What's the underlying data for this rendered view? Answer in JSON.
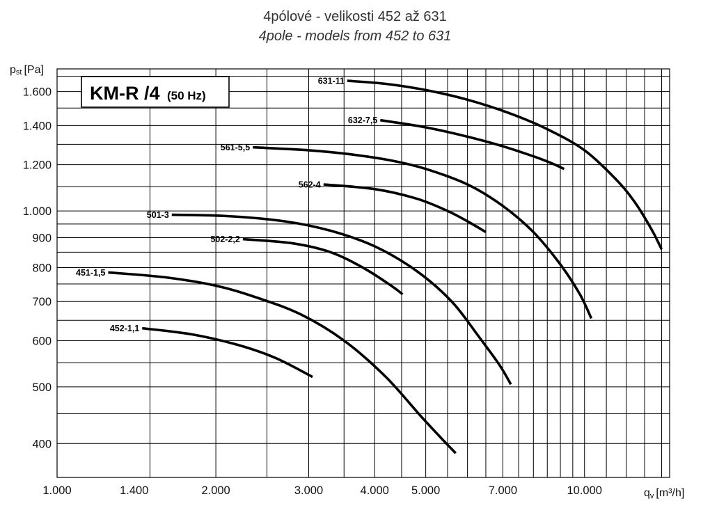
{
  "chart_data": {
    "type": "line",
    "title": "4pólové - velikosti 452 až 631",
    "subtitle": "4pole - models from 452 to 631",
    "legend": {
      "main": "KM-R /4",
      "sub": "(50 Hz)"
    },
    "x_scale": "log",
    "y_scale": "log",
    "xlim": [
      1000,
      14500
    ],
    "ylim": [
      350,
      1750
    ],
    "xlabel": {
      "main": "q",
      "sub": "v",
      "unit": "[m³/h]"
    },
    "ylabel": {
      "main": "p",
      "sub": "st",
      "unit": "[Pa]"
    },
    "x_ticks": [
      {
        "value": 1000,
        "label": "1.000"
      },
      {
        "value": 1400,
        "label": "1.400"
      },
      {
        "value": 2000,
        "label": "2.000"
      },
      {
        "value": 3000,
        "label": "3.000"
      },
      {
        "value": 4000,
        "label": "4.000"
      },
      {
        "value": 5000,
        "label": "5.000"
      },
      {
        "value": 7000,
        "label": "7.000"
      },
      {
        "value": 10000,
        "label": "10.000"
      }
    ],
    "y_ticks": [
      {
        "value": 400,
        "label": "400"
      },
      {
        "value": 500,
        "label": "500"
      },
      {
        "value": 600,
        "label": "600"
      },
      {
        "value": 700,
        "label": "700"
      },
      {
        "value": 800,
        "label": "800"
      },
      {
        "value": 900,
        "label": "900"
      },
      {
        "value": 1000,
        "label": "1.000"
      },
      {
        "value": 1200,
        "label": "1.200"
      },
      {
        "value": 1400,
        "label": "1.400"
      },
      {
        "value": 1600,
        "label": "1.600"
      }
    ],
    "grid": true,
    "series": [
      {
        "name": "631-11",
        "x": [
          3550,
          4200,
          5000,
          6000,
          7200,
          8500,
          10000,
          11500,
          12500,
          13400,
          14000
        ],
        "y": [
          1670,
          1650,
          1610,
          1550,
          1470,
          1380,
          1270,
          1130,
          1030,
          930,
          860
        ]
      },
      {
        "name": "632-7,5",
        "x": [
          4100,
          5000,
          6000,
          7000,
          8000,
          8600,
          9150
        ],
        "y": [
          1430,
          1390,
          1340,
          1290,
          1240,
          1210,
          1180
        ]
      },
      {
        "name": "561-5,5",
        "x": [
          2350,
          3000,
          3600,
          4300,
          5000,
          6000,
          7000,
          8000,
          9000,
          9800,
          10300
        ],
        "y": [
          1285,
          1270,
          1250,
          1220,
          1180,
          1110,
          1020,
          920,
          810,
          720,
          655
        ]
      },
      {
        "name": "562-4",
        "x": [
          3200,
          4000,
          4800,
          5500,
          6000,
          6500
        ],
        "y": [
          1110,
          1090,
          1050,
          1000,
          960,
          920
        ]
      },
      {
        "name": "501-3",
        "x": [
          1650,
          2100,
          2700,
          3300,
          4000,
          4800,
          5600,
          6300,
          6900,
          7250
        ],
        "y": [
          985,
          980,
          960,
          925,
          870,
          790,
          700,
          610,
          545,
          505
        ]
      },
      {
        "name": "502-2,2",
        "x": [
          2250,
          2800,
          3300,
          3800,
          4300,
          4520
        ],
        "y": [
          895,
          880,
          850,
          800,
          745,
          720
        ]
      },
      {
        "name": "451-1,5",
        "x": [
          1250,
          1600,
          2000,
          2400,
          2900,
          3500,
          4200,
          4900,
          5400,
          5700
        ],
        "y": [
          785,
          770,
          745,
          710,
          665,
          600,
          520,
          445,
          405,
          385
        ]
      },
      {
        "name": "452-1,1",
        "x": [
          1450,
          1800,
          2200,
          2600,
          3050
        ],
        "y": [
          630,
          615,
          590,
          560,
          520
        ]
      }
    ]
  }
}
